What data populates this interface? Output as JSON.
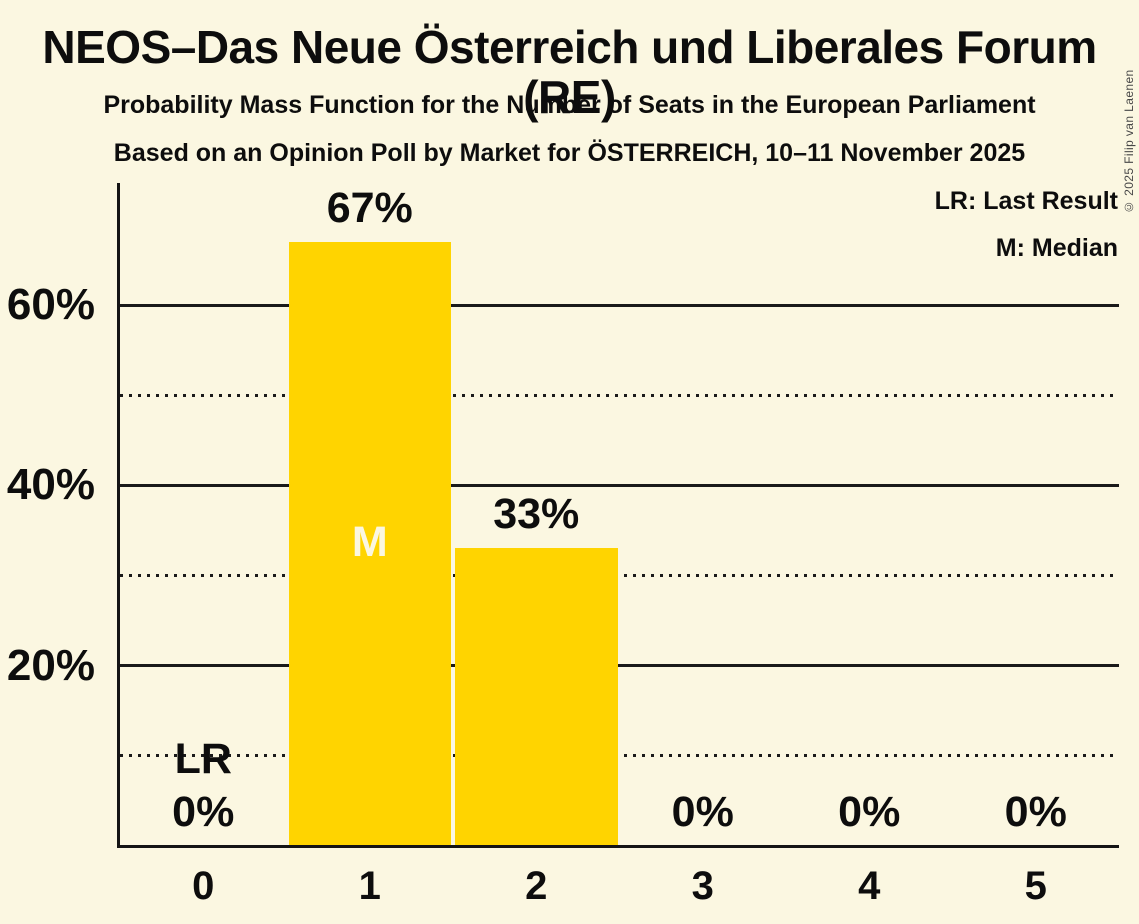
{
  "colors": {
    "background": "#FBF7E1",
    "bar": "#FFD400",
    "text": "#0D0D0D",
    "median_letter": "#FBF7E1",
    "grid": "#1A1A1A",
    "copyright": "#474747"
  },
  "header": {
    "title": "NEOS–Das Neue Österreich und Liberales Forum (RE)",
    "subtitle": "Probability Mass Function for the Number of Seats in the European Parliament",
    "source_line": "Based on an Opinion Poll by Market for ÖSTERREICH, 10–11 November 2025"
  },
  "legend": {
    "lr_label": "LR: Last Result",
    "m_label": "M: Median"
  },
  "copyright": "© 2025 Filip van Laenen",
  "chart_data": {
    "type": "bar",
    "title": "NEOS–Das Neue Österreich und Liberales Forum (RE)",
    "subtitle": "Probability Mass Function for the Number of Seats in the European Parliament",
    "source_line": "Based on an Opinion Poll by Market for ÖSTERREICH, 10–11 November 2025",
    "categories": [
      "0",
      "1",
      "2",
      "3",
      "4",
      "5"
    ],
    "values": [
      0,
      67,
      33,
      0,
      0,
      0
    ],
    "value_labels": [
      "0%",
      "67%",
      "33%",
      "0%",
      "0%",
      "0%"
    ],
    "ylim": [
      0,
      73.5
    ],
    "y_axis": {
      "solid_ticks": [
        {
          "value": 20,
          "label": "20%"
        },
        {
          "value": 40,
          "label": "40%"
        },
        {
          "value": 60,
          "label": "60%"
        }
      ],
      "dotted_values": [
        10,
        30,
        50
      ]
    },
    "grid": "horizontal",
    "legend_entries": [
      "LR: Last Result",
      "M: Median"
    ],
    "legend_position": "top-right",
    "annotations": [
      {
        "text": "LR",
        "category_index": 0,
        "y_percent": 9.6,
        "color": "#0D0D0D"
      },
      {
        "text": "M",
        "category_index": 1,
        "y_percent": 33.7,
        "color": "#FBF7E1"
      }
    ]
  }
}
